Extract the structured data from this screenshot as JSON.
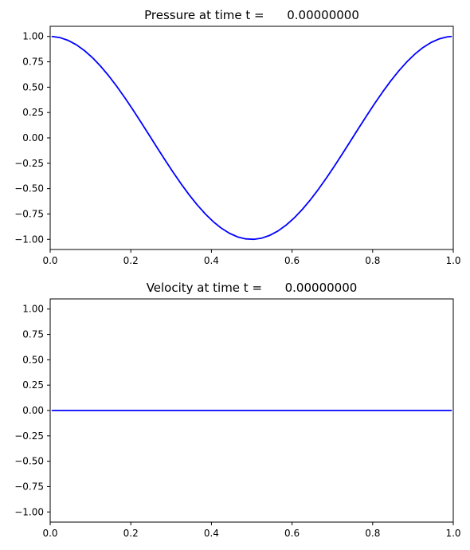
{
  "chart_data": [
    {
      "type": "line",
      "title": "Pressure at time t =      0.00000000",
      "xlabel": "",
      "ylabel": "",
      "xlim": [
        0,
        1
      ],
      "ylim": [
        -1.1,
        1.1
      ],
      "xticks": [
        0.0,
        0.2,
        0.4,
        0.6,
        0.8,
        1.0
      ],
      "xtick_labels": [
        "0.0",
        "0.2",
        "0.4",
        "0.6",
        "0.8",
        "1.0"
      ],
      "yticks": [
        -1.0,
        -0.75,
        -0.5,
        -0.25,
        0.0,
        0.25,
        0.5,
        0.75,
        1.0
      ],
      "ytick_labels": [
        "−1.00",
        "−0.75",
        "−0.50",
        "−0.25",
        "0.00",
        "0.25",
        "0.50",
        "0.75",
        "1.00"
      ],
      "grid": false,
      "series": [
        {
          "color": "#0000ff",
          "x": [
            0.005,
            0.025,
            0.045,
            0.065,
            0.085,
            0.105,
            0.125,
            0.145,
            0.165,
            0.185,
            0.205,
            0.225,
            0.245,
            0.265,
            0.285,
            0.305,
            0.325,
            0.345,
            0.365,
            0.385,
            0.405,
            0.425,
            0.445,
            0.465,
            0.485,
            0.505,
            0.525,
            0.545,
            0.565,
            0.585,
            0.605,
            0.625,
            0.645,
            0.665,
            0.685,
            0.705,
            0.725,
            0.745,
            0.765,
            0.785,
            0.805,
            0.825,
            0.845,
            0.865,
            0.885,
            0.905,
            0.925,
            0.945,
            0.965,
            0.985,
            0.995
          ],
          "y": [
            0.9995,
            0.9877,
            0.9603,
            0.9178,
            0.8607,
            0.7902,
            0.7071,
            0.6129,
            0.509,
            0.3971,
            0.279,
            0.1564,
            0.0314,
            -0.0941,
            -0.2181,
            -0.3387,
            -0.454,
            -0.5621,
            -0.6613,
            -0.7501,
            -0.8271,
            -0.891,
            -0.9409,
            -0.9759,
            -0.9956,
            -0.9995,
            -0.9877,
            -0.9603,
            -0.9178,
            -0.8607,
            -0.7902,
            -0.7071,
            -0.6129,
            -0.509,
            -0.3971,
            -0.279,
            -0.1564,
            -0.0314,
            0.0941,
            0.2181,
            0.3387,
            0.454,
            0.5621,
            0.6613,
            0.7501,
            0.8271,
            0.891,
            0.9409,
            0.9759,
            0.9956,
            0.9995
          ]
        }
      ]
    },
    {
      "type": "line",
      "title": "Velocity at time t =      0.00000000",
      "xlabel": "",
      "ylabel": "",
      "xlim": [
        0,
        1
      ],
      "ylim": [
        -1.1,
        1.1
      ],
      "xticks": [
        0.0,
        0.2,
        0.4,
        0.6,
        0.8,
        1.0
      ],
      "xtick_labels": [
        "0.0",
        "0.2",
        "0.4",
        "0.6",
        "0.8",
        "1.0"
      ],
      "yticks": [
        -1.0,
        -0.75,
        -0.5,
        -0.25,
        0.0,
        0.25,
        0.5,
        0.75,
        1.0
      ],
      "ytick_labels": [
        "−1.00",
        "−0.75",
        "−0.50",
        "−0.25",
        "0.00",
        "0.25",
        "0.50",
        "0.75",
        "1.00"
      ],
      "grid": false,
      "series": [
        {
          "color": "#0000ff",
          "x": [
            0.005,
            0.995
          ],
          "y": [
            0.0,
            0.0
          ]
        }
      ]
    }
  ]
}
